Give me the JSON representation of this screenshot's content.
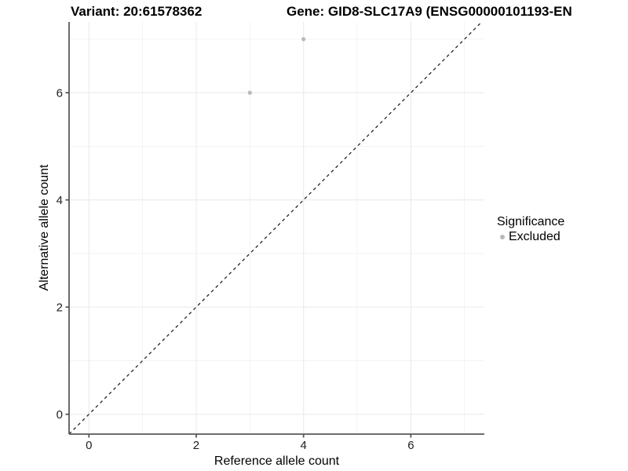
{
  "figure": {
    "title_left": "Variant: 20:61578362",
    "title_right": "Gene: GID8-SLC17A9 (ENSG00000101193-EN",
    "background": "#ffffff"
  },
  "chart_data": {
    "type": "scatter",
    "title": "Variant: 20:61578362",
    "subtitle": "Gene: GID8-SLC17A9 (ENSG00000101193-EN",
    "xlabel": "Reference allele count",
    "ylabel": "Alternative allele count",
    "xlim": [
      -0.37,
      7.37
    ],
    "ylim": [
      -0.37,
      7.32
    ],
    "x_ticks": [
      0,
      2,
      4,
      6
    ],
    "y_ticks": [
      0,
      2,
      4,
      6
    ],
    "x_minor_ticks": [
      1,
      3,
      5,
      7
    ],
    "y_minor_ticks": [
      1,
      3,
      5,
      7
    ],
    "grid": true,
    "series": [
      {
        "name": "Excluded",
        "color": "#b9b9b9",
        "points": [
          {
            "x": 3,
            "y": 6
          },
          {
            "x": 4,
            "y": 7
          }
        ]
      }
    ],
    "reference_line": {
      "kind": "identity",
      "slope": 1,
      "intercept": 0,
      "style": "dashed",
      "color": "#141414"
    },
    "legend": {
      "title": "Significance",
      "position": "right",
      "items": [
        {
          "label": "Excluded",
          "color": "#b9b9b9"
        }
      ]
    }
  },
  "colors": {
    "grid_major": "#ececec",
    "grid_minor": "#f3f3f3",
    "axis_line": "#595959",
    "tick_label": "#212121",
    "point": "#b9b9b9"
  }
}
